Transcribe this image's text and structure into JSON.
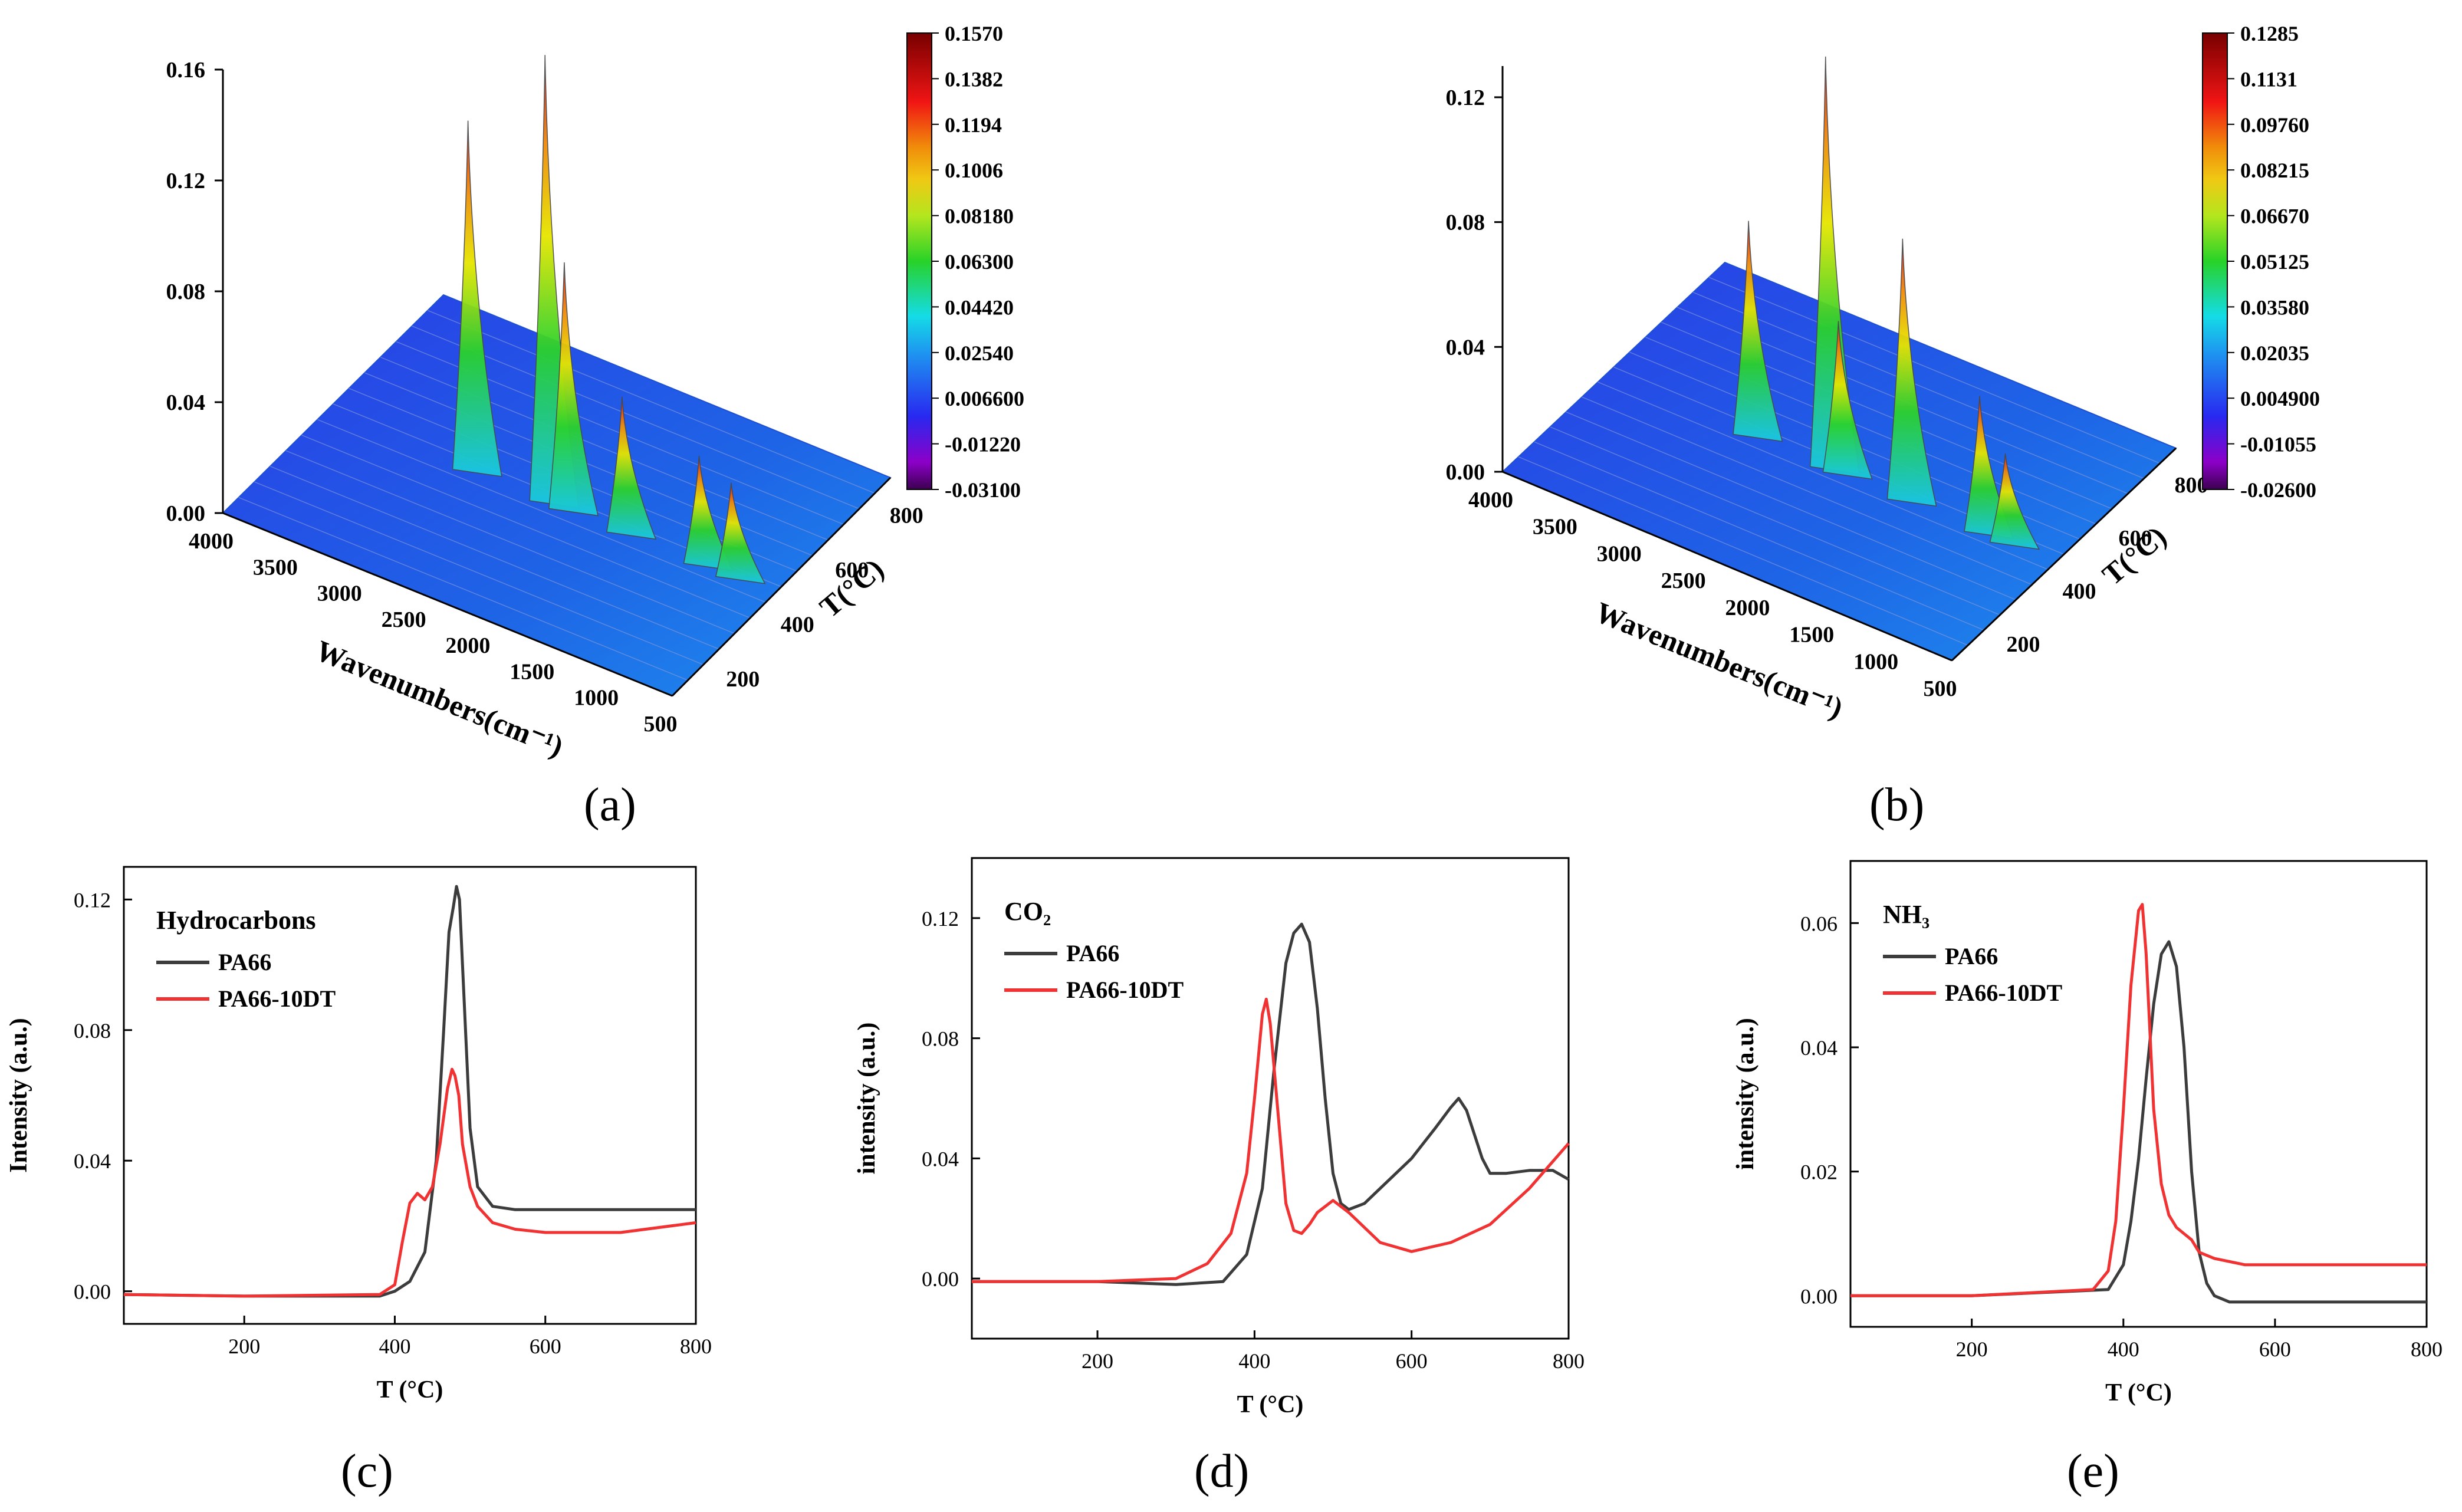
{
  "colors": {
    "pa66": "#3c3c3c",
    "pa66_10dt": "#f03232",
    "axis": "#000000",
    "surface_palette": [
      "#5a008c",
      "#1e1ee6",
      "#1e8cf0",
      "#19d7e6",
      "#2cd22c",
      "#e6e600",
      "#f08c0a",
      "#f01414",
      "#8c0000"
    ]
  },
  "panel_labels": {
    "a": "(a)",
    "b": "(b)",
    "c": "(c)",
    "d": "(d)",
    "e": "(e)"
  },
  "chart_data": [
    {
      "id": "a",
      "type": "surface3d",
      "zticks": [
        "0.00",
        "0.04",
        "0.08",
        "0.12",
        "0.16"
      ],
      "xlabel": "Wavenumbers(cm⁻¹)",
      "xticks": [
        "4000",
        "3500",
        "3000",
        "2500",
        "2000",
        "1500",
        "1000",
        "500"
      ],
      "ylabel": "T(°C)",
      "yticks": [
        "200",
        "400",
        "600",
        "800"
      ],
      "colorbar": [
        "0.1570",
        "0.1382",
        "0.1194",
        "0.1006",
        "0.08180",
        "0.06300",
        "0.04420",
        "0.02540",
        "0.006600",
        "-0.01220",
        "-0.03100"
      ],
      "zmax": 0.16,
      "peaks": [
        {
          "wavenumber": 2950,
          "height": 0.122
        },
        {
          "wavenumber": 2350,
          "height": 0.157
        },
        {
          "wavenumber": 2200,
          "height": 0.085
        },
        {
          "wavenumber": 1750,
          "height": 0.045
        },
        {
          "wavenumber": 1150,
          "height": 0.035
        },
        {
          "wavenumber": 900,
          "height": 0.03
        }
      ]
    },
    {
      "id": "b",
      "type": "surface3d",
      "zticks": [
        "0.00",
        "0.04",
        "0.08",
        "0.12"
      ],
      "xlabel": "Wavenumbers(cm⁻¹)",
      "xticks": [
        "4000",
        "3500",
        "3000",
        "2500",
        "2000",
        "1500",
        "1000",
        "500"
      ],
      "ylabel": "T(°C)",
      "yticks": [
        "200",
        "400",
        "600",
        "800"
      ],
      "colorbar": [
        "0.1285",
        "0.1131",
        "0.09760",
        "0.08215",
        "0.06670",
        "0.05125",
        "0.03580",
        "0.02035",
        "0.004900",
        "-0.01055",
        "-0.02600"
      ],
      "zmax": 0.13,
      "peaks": [
        {
          "wavenumber": 2950,
          "height": 0.065
        },
        {
          "wavenumber": 2350,
          "height": 0.128
        },
        {
          "wavenumber": 2250,
          "height": 0.045
        },
        {
          "wavenumber": 1750,
          "height": 0.08
        },
        {
          "wavenumber": 1150,
          "height": 0.04
        },
        {
          "wavenumber": 950,
          "height": 0.025
        }
      ]
    },
    {
      "id": "c",
      "type": "line",
      "annotation": "Hydrocarbons",
      "xlabel": "T (°C)",
      "ylabel": "Intensity (a.u.)",
      "xlim": [
        40,
        800
      ],
      "ylim": [
        -0.01,
        0.13
      ],
      "xticks": [
        200,
        400,
        600,
        800
      ],
      "yticks": [
        0.0,
        0.04,
        0.08,
        0.12
      ],
      "ytick_labels": [
        "0.00",
        "0.04",
        "0.08",
        "0.12"
      ],
      "series": [
        {
          "name": "PA66",
          "x": [
            40,
            200,
            380,
            400,
            420,
            440,
            455,
            465,
            472,
            478,
            482,
            486,
            490,
            495,
            500,
            510,
            530,
            560,
            600,
            700,
            800
          ],
          "y": [
            -0.001,
            -0.0015,
            -0.0015,
            0.0,
            0.003,
            0.012,
            0.04,
            0.08,
            0.11,
            0.118,
            0.124,
            0.12,
            0.1,
            0.075,
            0.05,
            0.032,
            0.026,
            0.025,
            0.025,
            0.025,
            0.025
          ]
        },
        {
          "name": "PA66-10DT",
          "x": [
            40,
            200,
            380,
            400,
            410,
            420,
            430,
            440,
            450,
            460,
            470,
            476,
            480,
            485,
            490,
            500,
            510,
            530,
            560,
            600,
            700,
            800
          ],
          "y": [
            -0.001,
            -0.0015,
            -0.001,
            0.002,
            0.015,
            0.027,
            0.03,
            0.028,
            0.032,
            0.045,
            0.062,
            0.068,
            0.066,
            0.06,
            0.045,
            0.032,
            0.026,
            0.021,
            0.019,
            0.018,
            0.018,
            0.021
          ]
        }
      ]
    },
    {
      "id": "d",
      "type": "line",
      "annotation": "CO₂",
      "xlabel": "T (°C)",
      "ylabel": "intensity (a.u.)",
      "xlim": [
        40,
        800
      ],
      "ylim": [
        -0.02,
        0.14
      ],
      "xticks": [
        200,
        400,
        600,
        800
      ],
      "yticks": [
        0.0,
        0.04,
        0.08,
        0.12
      ],
      "ytick_labels": [
        "0.00",
        "0.04",
        "0.08",
        "0.12"
      ],
      "series": [
        {
          "name": "PA66",
          "x": [
            40,
            200,
            300,
            360,
            390,
            410,
            425,
            440,
            450,
            460,
            470,
            480,
            490,
            500,
            510,
            520,
            540,
            560,
            600,
            630,
            650,
            660,
            670,
            680,
            690,
            700,
            720,
            750,
            780,
            800
          ],
          "y": [
            -0.001,
            -0.001,
            -0.002,
            -0.001,
            0.008,
            0.03,
            0.07,
            0.105,
            0.115,
            0.118,
            0.112,
            0.09,
            0.06,
            0.035,
            0.025,
            0.023,
            0.025,
            0.03,
            0.04,
            0.05,
            0.057,
            0.06,
            0.056,
            0.048,
            0.04,
            0.035,
            0.035,
            0.036,
            0.036,
            0.033
          ]
        },
        {
          "name": "PA66-10DT",
          "x": [
            40,
            200,
            300,
            340,
            370,
            390,
            400,
            410,
            415,
            420,
            430,
            440,
            450,
            460,
            470,
            480,
            500,
            520,
            560,
            600,
            650,
            700,
            750,
            800
          ],
          "y": [
            -0.001,
            -0.001,
            0.0,
            0.005,
            0.015,
            0.035,
            0.06,
            0.088,
            0.093,
            0.085,
            0.055,
            0.025,
            0.016,
            0.015,
            0.018,
            0.022,
            0.026,
            0.022,
            0.012,
            0.009,
            0.012,
            0.018,
            0.03,
            0.045
          ]
        }
      ]
    },
    {
      "id": "e",
      "type": "line",
      "annotation": "NH₃",
      "xlabel": "T (°C)",
      "ylabel": "intensity (a.u.)",
      "xlim": [
        40,
        800
      ],
      "ylim": [
        -0.005,
        0.07
      ],
      "xticks": [
        200,
        400,
        600,
        800
      ],
      "yticks": [
        0.0,
        0.02,
        0.04,
        0.06
      ],
      "ytick_labels": [
        "0.00",
        "0.02",
        "0.04",
        "0.06"
      ],
      "series": [
        {
          "name": "PA66",
          "x": [
            40,
            200,
            380,
            400,
            410,
            420,
            430,
            440,
            450,
            460,
            470,
            480,
            490,
            500,
            510,
            520,
            540,
            600,
            700,
            800
          ],
          "y": [
            0.0,
            0.0,
            0.001,
            0.005,
            0.012,
            0.022,
            0.035,
            0.047,
            0.055,
            0.057,
            0.053,
            0.04,
            0.02,
            0.007,
            0.002,
            0.0,
            -0.001,
            -0.001,
            -0.001,
            -0.001
          ]
        },
        {
          "name": "PA66-10DT",
          "x": [
            40,
            200,
            360,
            380,
            390,
            400,
            410,
            420,
            425,
            430,
            440,
            450,
            460,
            470,
            480,
            490,
            500,
            520,
            560,
            600,
            700,
            800
          ],
          "y": [
            0.0,
            0.0,
            0.001,
            0.004,
            0.012,
            0.03,
            0.05,
            0.062,
            0.063,
            0.055,
            0.03,
            0.018,
            0.013,
            0.011,
            0.01,
            0.009,
            0.007,
            0.006,
            0.005,
            0.005,
            0.005,
            0.005
          ]
        }
      ]
    }
  ]
}
